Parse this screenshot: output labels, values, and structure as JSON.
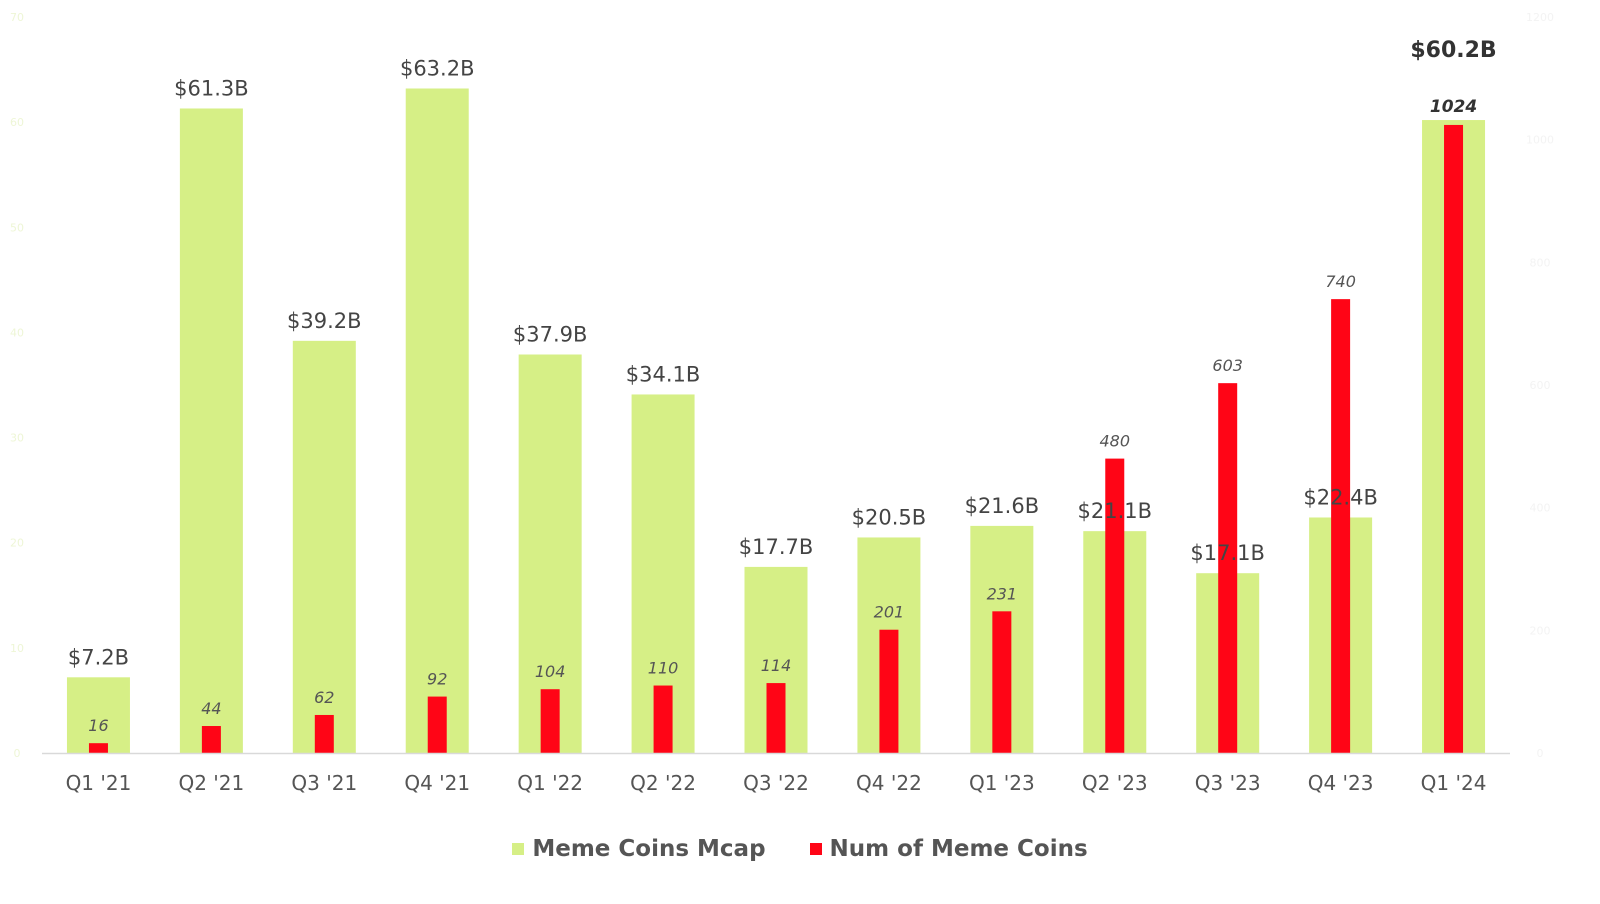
{
  "chart_data": {
    "type": "bar",
    "title": "",
    "xlabel": "",
    "ylabel": "",
    "categories": [
      "Q1 '21",
      "Q2 '21",
      "Q3 '21",
      "Q4 '21",
      "Q1 '22",
      "Q2 '22",
      "Q3 '22",
      "Q4 '22",
      "Q1 '23",
      "Q2 '23",
      "Q3 '23",
      "Q4 '23",
      "Q1 '24"
    ],
    "ylim": [
      0,
      70
    ],
    "y2lim": [
      0,
      1200
    ],
    "yticks": [
      0,
      10,
      20,
      30,
      40,
      50,
      60,
      70
    ],
    "y2ticks": [
      0,
      200,
      400,
      600,
      800,
      1000,
      1200
    ],
    "series": [
      {
        "name": "Meme Coins Mcap",
        "axis": "left",
        "color": "#d6ef86",
        "values": [
          7.2,
          61.3,
          39.2,
          63.2,
          37.9,
          34.1,
          17.7,
          20.5,
          21.6,
          21.1,
          17.1,
          22.4,
          60.2
        ],
        "labels": [
          "$7.2B",
          "$61.3B",
          "$39.2B",
          "$63.2B",
          "$37.9B",
          "$34.1B",
          "$17.7B",
          "$20.5B",
          "$21.6B",
          "$21.1B",
          "$17.1B",
          "$22.4B",
          "$60.2B"
        ]
      },
      {
        "name": "Num of Meme Coins",
        "axis": "right",
        "color": "#ff0516",
        "values": [
          16,
          44,
          62,
          92,
          104,
          110,
          114,
          201,
          231,
          480,
          603,
          740,
          1024
        ],
        "labels": [
          "16",
          "44",
          "62",
          "92",
          "104",
          "110",
          "114",
          "201",
          "231",
          "480",
          "603",
          "740",
          "1024"
        ]
      }
    ],
    "legend": [
      "Meme Coins Mcap",
      "Num of Meme Coins"
    ],
    "legend_position": "bottom-center"
  }
}
